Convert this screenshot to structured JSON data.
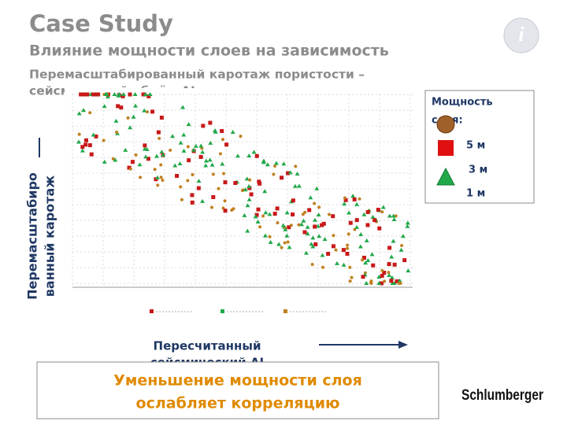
{
  "header": {
    "title": "Case Study",
    "subtitle": "Влияние мощности слоев на зависимость",
    "caption_lines": [
      "Перемасштабированный каротаж пористости –",
      "сейсмический объём AI"
    ]
  },
  "legend": {
    "title_lines": [
      "Мощность",
      "слоя:"
    ],
    "items": [
      "5 м",
      "3 м",
      "1 м"
    ]
  },
  "y_label_lines": [
    "Перемасштабиро",
    "ванный каротаж"
  ],
  "x_label_lines": [
    "Пересчитанный",
    "сейсмический AI"
  ],
  "conclusion_lines": [
    "Уменьшение мощности слоя",
    "ослабляет корреляцию"
  ],
  "logo": "Schlumberger",
  "info_icon": "i"
}
